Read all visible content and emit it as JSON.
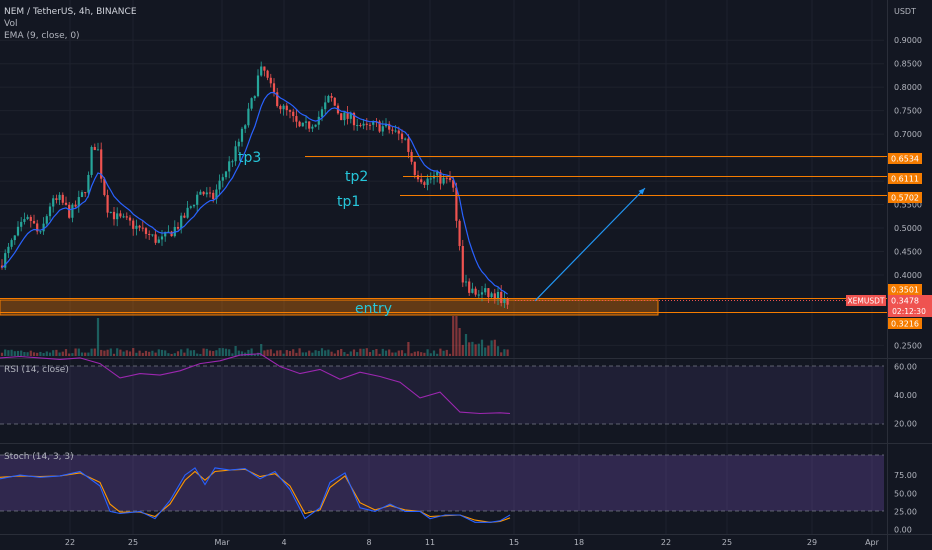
{
  "header": {
    "symbol_line": "NEM / TetherUS, 4h, BINANCE",
    "vol_label": "Vol",
    "ema_label": "EMA (9, close, 0)"
  },
  "rsi_label": "RSI (14, close)",
  "stoch_label": "Stoch (14, 3, 3)",
  "currency_label": "USDT",
  "annotations": {
    "tp3": "tp3",
    "tp2": "tp2",
    "tp1": "tp1",
    "entry": "entry"
  },
  "price_tags": {
    "level_6534": "0.6534",
    "level_6111": "0.6111",
    "level_5702": "0.5702",
    "level_3501": "0.3501",
    "ticker": "XEMUSDT",
    "last": "0.3478",
    "countdown": "02:12:30",
    "level_3216": "0.3216"
  },
  "colors": {
    "background": "#131722",
    "up": "#26a69a",
    "down": "#ef5350",
    "ema": "#2962ff",
    "level": "#f57c00",
    "annotation": "#26c6da",
    "rsi": "#9c27b0",
    "stoch_k": "#2962ff",
    "stoch_d": "#ff9800",
    "text": "#b2b5be"
  },
  "chart_data": [
    {
      "type": "candlestick",
      "pair": "NEM / TetherUS",
      "timeframe": "4h",
      "exchange": "BINANCE",
      "ylim": [
        0.22,
        0.95
      ],
      "y_ticks": [
        "0.9000",
        "0.8500",
        "0.8000",
        "0.7500",
        "0.7000",
        "0.6500",
        "0.6000",
        "0.5500",
        "0.5000",
        "0.4500",
        "0.4000",
        "0.2500"
      ],
      "x_ticks": [
        "22",
        "25",
        "Mar",
        "4",
        "8",
        "11",
        "15",
        "18",
        "22",
        "25",
        "29",
        "Apr"
      ],
      "price_path": [
        [
          0,
          0.42
        ],
        [
          10,
          0.46
        ],
        [
          20,
          0.5
        ],
        [
          30,
          0.52
        ],
        [
          40,
          0.48
        ],
        [
          50,
          0.55
        ],
        [
          60,
          0.56
        ],
        [
          70,
          0.53
        ],
        [
          80,
          0.56
        ],
        [
          88,
          0.6
        ],
        [
          92,
          0.67
        ],
        [
          97,
          0.68
        ],
        [
          102,
          0.6
        ],
        [
          108,
          0.54
        ],
        [
          118,
          0.52
        ],
        [
          130,
          0.51
        ],
        [
          145,
          0.49
        ],
        [
          160,
          0.47
        ],
        [
          170,
          0.49
        ],
        [
          180,
          0.51
        ],
        [
          192,
          0.55
        ],
        [
          200,
          0.58
        ],
        [
          212,
          0.56
        ],
        [
          225,
          0.62
        ],
        [
          235,
          0.66
        ],
        [
          245,
          0.72
        ],
        [
          252,
          0.77
        ],
        [
          258,
          0.82
        ],
        [
          263,
          0.84
        ],
        [
          270,
          0.8
        ],
        [
          280,
          0.76
        ],
        [
          290,
          0.74
        ],
        [
          300,
          0.71
        ],
        [
          310,
          0.72
        ],
        [
          320,
          0.74
        ],
        [
          330,
          0.78
        ],
        [
          340,
          0.74
        ],
        [
          355,
          0.73
        ],
        [
          365,
          0.71
        ],
        [
          375,
          0.72
        ],
        [
          390,
          0.71
        ],
        [
          405,
          0.69
        ],
        [
          415,
          0.62
        ],
        [
          425,
          0.6
        ],
        [
          435,
          0.61
        ],
        [
          445,
          0.6
        ],
        [
          452,
          0.6
        ],
        [
          458,
          0.5
        ],
        [
          462,
          0.4
        ],
        [
          468,
          0.37
        ],
        [
          475,
          0.36
        ],
        [
          485,
          0.36
        ],
        [
          495,
          0.355
        ],
        [
          505,
          0.35
        ],
        [
          510,
          0.348
        ]
      ],
      "levels": [
        {
          "value": 0.6534,
          "label": "tp3"
        },
        {
          "value": 0.6111,
          "label": "tp2"
        },
        {
          "value": 0.5702,
          "label": "tp1"
        },
        {
          "value": 0.3501
        },
        {
          "value": 0.3216
        }
      ],
      "entry_zone": [
        0.3216,
        0.3501
      ],
      "projection_arrow": {
        "from": [
          535,
          0.345
        ],
        "to": [
          645,
          0.585
        ]
      },
      "last_price": 0.3478
    },
    {
      "type": "line",
      "name": "RSI (14, close)",
      "ylim": [
        14,
        74
      ],
      "y_ticks": [
        "60.00",
        "40.00",
        "20.00"
      ],
      "bands": [
        70,
        30
      ],
      "x": [
        0,
        20,
        40,
        60,
        80,
        100,
        120,
        140,
        160,
        180,
        200,
        220,
        240,
        260,
        280,
        300,
        320,
        340,
        360,
        380,
        400,
        420,
        440,
        460,
        480,
        500,
        510
      ],
      "values": [
        66,
        67,
        66,
        65,
        66,
        62,
        52,
        55,
        54,
        57,
        62,
        64,
        68,
        69,
        60,
        55,
        58,
        51,
        56,
        53,
        49,
        38,
        42,
        28,
        27,
        27.5,
        27
      ]
    },
    {
      "type": "line",
      "name": "Stoch (14, 3, 3)",
      "ylim": [
        -2,
        96
      ],
      "y_ticks": [
        "75.00",
        "50.00",
        "25.00",
        "0.00"
      ],
      "bands": [
        80,
        20
      ],
      "x": [
        0,
        20,
        40,
        60,
        80,
        100,
        110,
        120,
        140,
        155,
        170,
        185,
        195,
        205,
        215,
        230,
        245,
        260,
        275,
        290,
        305,
        320,
        330,
        345,
        360,
        375,
        390,
        405,
        420,
        430,
        445,
        460,
        475,
        490,
        500,
        510
      ],
      "series": [
        {
          "values": [
            70,
            75,
            72,
            74,
            80,
            60,
            25,
            22,
            25,
            15,
            40,
            75,
            85,
            62,
            85,
            82,
            84,
            70,
            80,
            55,
            15,
            30,
            65,
            78,
            30,
            25,
            35,
            25,
            25,
            15,
            20,
            20,
            10,
            10,
            12,
            20
          ]
        },
        {
          "values": [
            72,
            74,
            73,
            74,
            78,
            65,
            35,
            24,
            24,
            18,
            35,
            68,
            80,
            68,
            80,
            82,
            83,
            73,
            77,
            60,
            22,
            27,
            58,
            74,
            37,
            27,
            33,
            27,
            25,
            18,
            19,
            20,
            13,
            10,
            11,
            16
          ]
        }
      ]
    }
  ]
}
